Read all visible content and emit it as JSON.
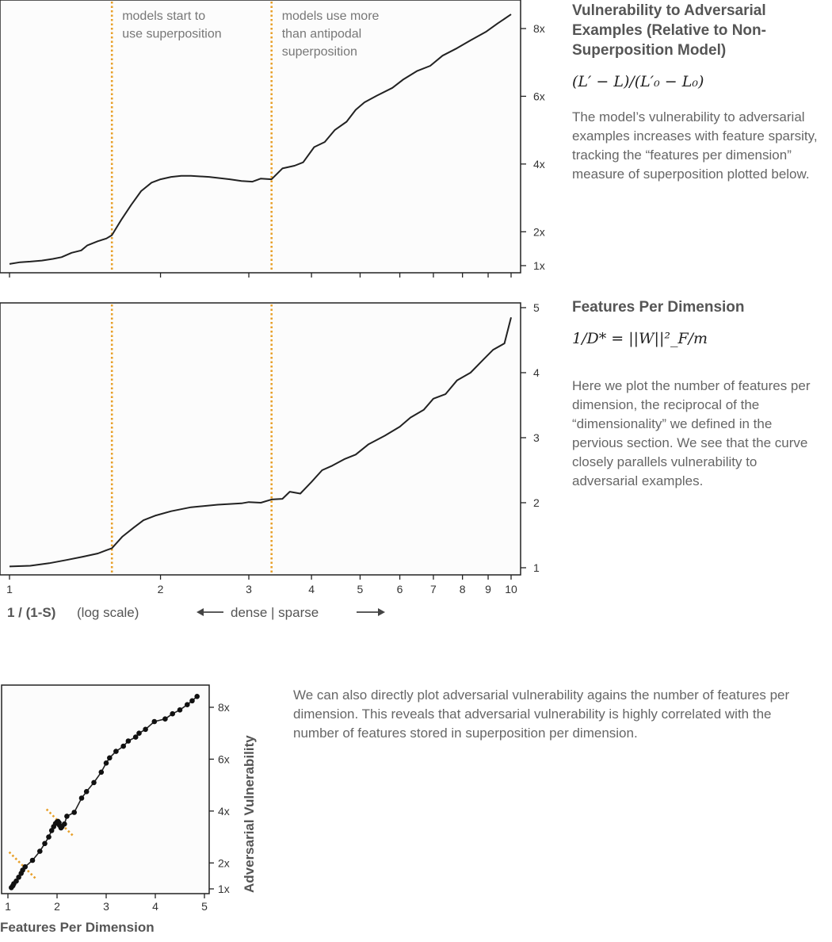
{
  "panel1": {
    "title": "Vulnerability to Adversarial Examples (Relative to Non-Superposition Model)",
    "formula": "(L′ − L)/(L′₀ − L₀)",
    "description": "The model’s vulnerability to adversarial examples increases with feature sparsity, tracking the “features per dimension” measure of superposition plotted below."
  },
  "panel2": {
    "title": "Features Per Dimension",
    "formula": "1/D* = ||W||²_F/m",
    "description": "Here we plot the number of features per dimension, the reciprocal of the “dimensionality” we defined in the pervious section. We see that the curve closely parallels vulnerability to adversarial examples."
  },
  "bottom": {
    "description": "We can also directly plot adversarial vulnerability agains the number of features per dimension. This reveals that adversarial vulnerability is highly correlated with the number of features stored in superposition per dimension."
  },
  "colors": {
    "line": "#222222",
    "marker": "#e8a02a",
    "panel_bg": "#fcfcfc",
    "frame": "#222222"
  },
  "chart_data": [
    {
      "type": "line",
      "title": "",
      "xlabel": "1 / (1-S)",
      "xscale_note": "(log scale)",
      "direction_label": "dense | sparse",
      "xscale": "log",
      "xlim": [
        0.98,
        10.4
      ],
      "ylim": [
        0.85,
        8.9
      ],
      "yticks": [
        1,
        2,
        4,
        6,
        8
      ],
      "yticklabels": [
        "1x",
        "2x",
        "4x",
        "6x",
        "8x"
      ],
      "vlines": [
        {
          "x": 1.6,
          "label_lines": [
            "models start to",
            "use superposition"
          ]
        },
        {
          "x": 3.33,
          "label_lines": [
            "models use more",
            "than antipodal",
            "superposition"
          ]
        }
      ],
      "x": [
        1.0,
        1.05,
        1.1,
        1.16,
        1.22,
        1.27,
        1.33,
        1.39,
        1.43,
        1.5,
        1.56,
        1.6,
        1.67,
        1.75,
        1.83,
        1.92,
        2.0,
        2.1,
        2.2,
        2.3,
        2.5,
        2.75,
        2.9,
        3.05,
        3.17,
        3.33,
        3.5,
        3.7,
        3.85,
        4.05,
        4.25,
        4.45,
        4.7,
        4.9,
        5.1,
        5.4,
        5.8,
        6.1,
        6.5,
        6.9,
        7.3,
        7.8,
        8.3,
        8.9,
        9.4,
        10.0
      ],
      "series": [
        {
          "values": [
            1.05,
            1.1,
            1.12,
            1.15,
            1.2,
            1.25,
            1.38,
            1.45,
            1.6,
            1.72,
            1.8,
            1.9,
            2.35,
            2.8,
            3.2,
            3.45,
            3.55,
            3.62,
            3.65,
            3.65,
            3.62,
            3.55,
            3.5,
            3.48,
            3.57,
            3.55,
            3.87,
            3.95,
            4.05,
            4.5,
            4.65,
            5.0,
            5.25,
            5.6,
            5.82,
            6.02,
            6.25,
            6.5,
            6.75,
            6.9,
            7.2,
            7.42,
            7.65,
            7.9,
            8.15,
            8.42
          ]
        }
      ]
    },
    {
      "type": "line",
      "title": "",
      "xlabel": "1 / (1-S)",
      "xscale": "log",
      "xlim": [
        0.98,
        10.4
      ],
      "ylim": [
        0.85,
        5.05
      ],
      "xticks": [
        1,
        2,
        3,
        4,
        5,
        6,
        7,
        8,
        9,
        10
      ],
      "xticklabels": [
        "1",
        "2",
        "3",
        "4",
        "5",
        "6",
        "7",
        "8",
        "9",
        "10"
      ],
      "yticks": [
        1,
        2,
        3,
        4,
        5
      ],
      "yticklabels": [
        "1",
        "2",
        "3",
        "4",
        "5"
      ],
      "vlines": [
        {
          "x": 1.6
        },
        {
          "x": 3.33
        }
      ],
      "x": [
        1.0,
        1.1,
        1.2,
        1.3,
        1.4,
        1.5,
        1.56,
        1.6,
        1.68,
        1.77,
        1.85,
        1.95,
        2.1,
        2.3,
        2.6,
        2.9,
        3.0,
        3.17,
        3.33,
        3.5,
        3.62,
        3.8,
        4.0,
        4.2,
        4.4,
        4.65,
        4.9,
        5.2,
        5.6,
        6.0,
        6.3,
        6.7,
        7.0,
        7.4,
        7.8,
        8.3,
        8.8,
        9.2,
        9.7,
        10.0
      ],
      "series": [
        {
          "values": [
            1.02,
            1.03,
            1.07,
            1.12,
            1.17,
            1.22,
            1.27,
            1.3,
            1.48,
            1.62,
            1.73,
            1.8,
            1.87,
            1.93,
            1.97,
            1.99,
            2.01,
            2.0,
            2.05,
            2.06,
            2.17,
            2.14,
            2.32,
            2.5,
            2.57,
            2.67,
            2.74,
            2.9,
            3.03,
            3.17,
            3.31,
            3.43,
            3.6,
            3.67,
            3.88,
            4.0,
            4.2,
            4.35,
            4.45,
            4.85
          ]
        }
      ]
    },
    {
      "type": "scatter",
      "title": "",
      "xlabel": "Features Per Dimension",
      "ylabel": "Adversarial Vulnerability",
      "xlim": [
        0.95,
        5.05
      ],
      "ylim": [
        0.85,
        8.9
      ],
      "xticks": [
        1,
        2,
        3,
        4,
        5
      ],
      "xticklabels": [
        "1",
        "2",
        "3",
        "4",
        "5"
      ],
      "yticks": [
        1,
        2,
        4,
        6,
        8
      ],
      "yticklabels": [
        "1x",
        "2x",
        "4x",
        "6x",
        "8x"
      ],
      "connected": true,
      "markers": [
        {
          "x": 1.3,
          "y": 1.9
        },
        {
          "x": 2.06,
          "y": 3.55
        }
      ],
      "points": [
        [
          1.07,
          1.05
        ],
        [
          1.1,
          1.12
        ],
        [
          1.12,
          1.2
        ],
        [
          1.17,
          1.3
        ],
        [
          1.22,
          1.45
        ],
        [
          1.27,
          1.6
        ],
        [
          1.3,
          1.72
        ],
        [
          1.35,
          1.85
        ],
        [
          1.5,
          2.1
        ],
        [
          1.65,
          2.45
        ],
        [
          1.75,
          2.75
        ],
        [
          1.83,
          3.0
        ],
        [
          1.89,
          3.25
        ],
        [
          1.93,
          3.4
        ],
        [
          1.97,
          3.52
        ],
        [
          2.0,
          3.58
        ],
        [
          2.02,
          3.6
        ],
        [
          2.04,
          3.55
        ],
        [
          2.05,
          3.45
        ],
        [
          2.08,
          3.35
        ],
        [
          2.1,
          3.4
        ],
        [
          2.15,
          3.5
        ],
        [
          2.2,
          3.8
        ],
        [
          2.35,
          3.95
        ],
        [
          2.5,
          4.5
        ],
        [
          2.6,
          4.75
        ],
        [
          2.75,
          5.1
        ],
        [
          2.9,
          5.5
        ],
        [
          3.0,
          5.85
        ],
        [
          3.07,
          6.05
        ],
        [
          3.2,
          6.3
        ],
        [
          3.35,
          6.5
        ],
        [
          3.45,
          6.7
        ],
        [
          3.6,
          6.85
        ],
        [
          3.67,
          7.0
        ],
        [
          3.8,
          7.15
        ],
        [
          3.98,
          7.45
        ],
        [
          4.2,
          7.55
        ],
        [
          4.35,
          7.75
        ],
        [
          4.5,
          7.9
        ],
        [
          4.65,
          8.1
        ],
        [
          4.75,
          8.25
        ],
        [
          4.85,
          8.42
        ]
      ]
    }
  ]
}
